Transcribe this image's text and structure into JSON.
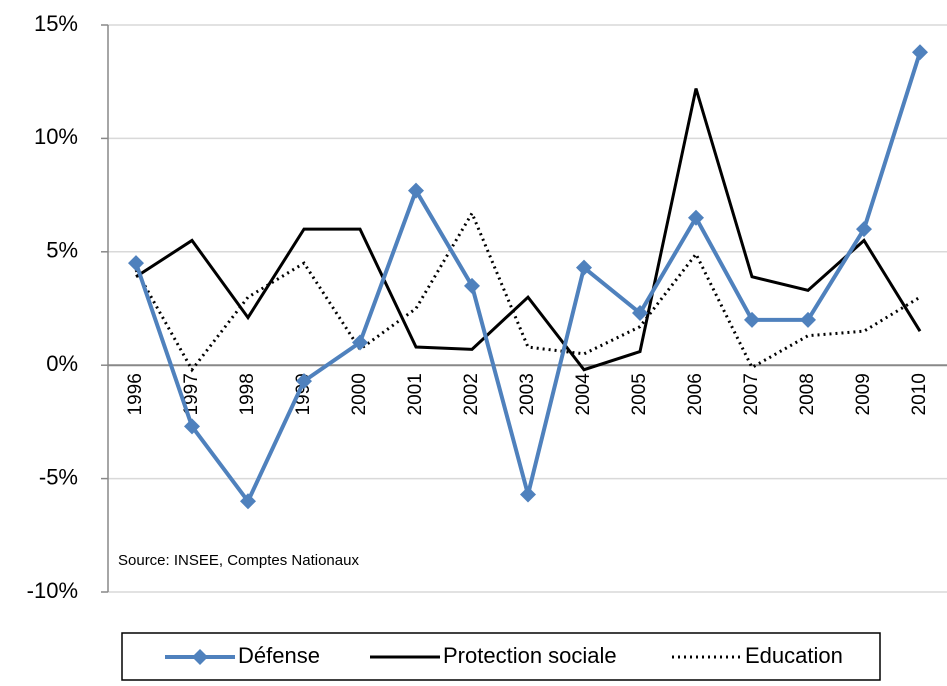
{
  "chart_data": {
    "type": "line",
    "categories": [
      "1996",
      "1997",
      "1998",
      "1999",
      "2000",
      "2001",
      "2002",
      "2003",
      "2004",
      "2005",
      "2006",
      "2007",
      "2008",
      "2009",
      "2010"
    ],
    "series": [
      {
        "name": "Défense",
        "color": "#4f81bd",
        "marker": "diamond",
        "dash": "solid",
        "values": [
          4.5,
          -2.7,
          -6.0,
          -0.7,
          1.0,
          7.7,
          3.5,
          -5.7,
          4.3,
          2.3,
          6.5,
          2.0,
          2.0,
          6.0,
          13.8
        ]
      },
      {
        "name": "Protection sociale",
        "color": "#000000",
        "dash": "solid",
        "values": [
          3.9,
          5.5,
          2.1,
          6.0,
          6.0,
          0.8,
          0.7,
          3.0,
          -0.2,
          0.6,
          12.2,
          3.9,
          3.3,
          5.5,
          1.5
        ]
      },
      {
        "name": "Education",
        "color": "#000000",
        "dash": "dotted",
        "values": [
          4.2,
          -0.2,
          3.0,
          4.5,
          0.7,
          2.5,
          6.7,
          0.8,
          0.5,
          1.7,
          4.9,
          -0.1,
          1.3,
          1.5,
          3.0
        ]
      }
    ],
    "ylim": [
      -10,
      15
    ],
    "yticks": [
      {
        "value": -10,
        "label": "-10%"
      },
      {
        "value": -5,
        "label": "-5%"
      },
      {
        "value": 0,
        "label": "0%"
      },
      {
        "value": 5,
        "label": "5%"
      },
      {
        "value": 10,
        "label": "10%"
      },
      {
        "value": 15,
        "label": "15%"
      }
    ],
    "grid": true,
    "legend": "bottom",
    "annotations": [
      "Source: INSEE, Comptes  Nationaux"
    ]
  }
}
